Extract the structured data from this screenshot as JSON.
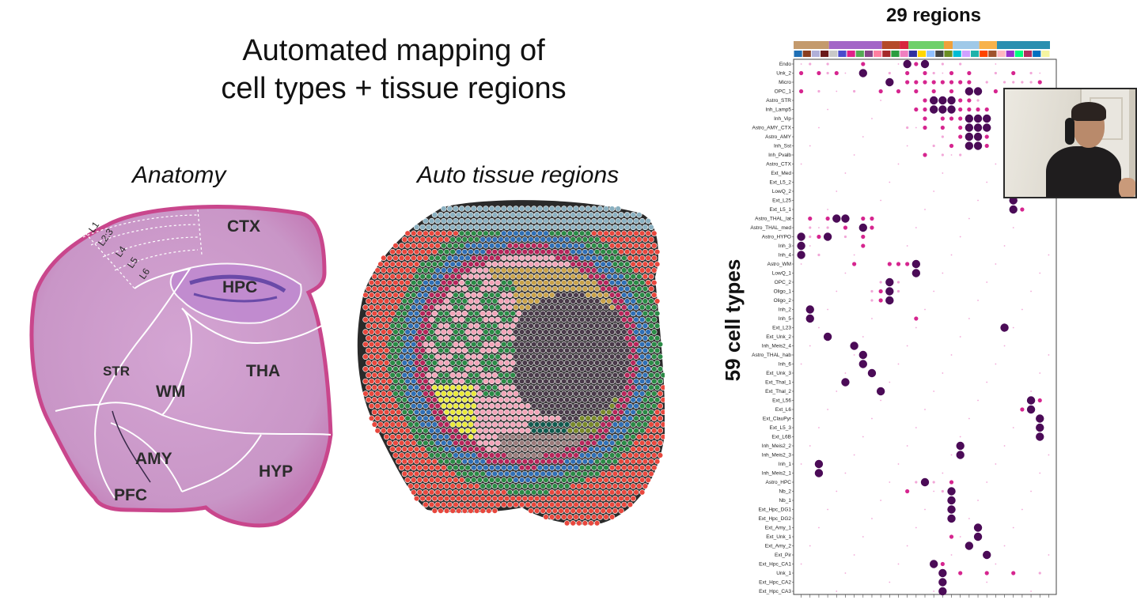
{
  "slide": {
    "title_line1": "Automated mapping of",
    "title_line2": "cell types + tissue regions",
    "anatomy_label": "Anatomy",
    "auto_label": "Auto tissue regions",
    "regions_count_label": "29 regions",
    "cell_types_count_label": "59 cell types"
  },
  "anatomy": {
    "regions": [
      "CTX",
      "HPC",
      "STR",
      "WM",
      "THA",
      "AMY",
      "HYP",
      "PFC"
    ],
    "layers": [
      "L1",
      "L2:3",
      "L4",
      "L5",
      "L6"
    ],
    "colors": {
      "tissue": "#cf9ccc",
      "edge": "#c44a8a",
      "outline": "#ffffff",
      "label": "#2b2b2b"
    }
  },
  "auto_regions": {
    "palette": [
      "#e8473d",
      "#2a8a45",
      "#2f6fb5",
      "#b8245a",
      "#f2a4b8",
      "#e9e93a",
      "#4a3a4a",
      "#7a8a2a",
      "#0f5b4e",
      "#9a7a7a",
      "#5a5cb0",
      "#8ab0c0",
      "#c9a24a",
      "#5a2d2d",
      "#6ab4d6"
    ],
    "outline": "#2a2a2a"
  },
  "dotplot": {
    "region_group_colors": [
      "#c49a6c",
      "#a366c7",
      "#b54a2a",
      "#d8273d",
      "#6fd06a",
      "#f0a03a",
      "#9fc9e8",
      "#f7b24a",
      "#2a8fb0"
    ],
    "region_colors": [
      "#1f6fb5",
      "#8a3d1f",
      "#b0b0d8",
      "#6a1a1a",
      "#c8c8c8",
      "#4a4acc",
      "#e0228a",
      "#55aa55",
      "#884488",
      "#ff7fa0",
      "#a52a2a",
      "#2a9d40",
      "#f080c0",
      "#3030a0",
      "#ffd700",
      "#90c0ff",
      "#444444",
      "#6b8e23",
      "#00bcd4",
      "#d0a0ff",
      "#20b2aa",
      "#ff4500",
      "#a0522d",
      "#ffb6c1",
      "#9932cc",
      "#00ff7f",
      "#b03060",
      "#0070c0",
      "#f5f5a0"
    ],
    "dot_dark": "#4b0b57",
    "dot_mid": "#d6258f",
    "dot_light": "#f2a7d8",
    "cell_types": [
      "Endo",
      "Unk_2",
      "Micro",
      "OPC_1",
      "Astro_STR",
      "Inh_Lamp5",
      "Inh_Vip",
      "Astro_AMY_CTX",
      "Astro_AMY",
      "Inh_Sst",
      "Inh_Pvalb",
      "Astro_CTX",
      "Ext_Med",
      "Ext_L5_2",
      "LowQ_2",
      "Ext_L25",
      "Ext_L5_1",
      "Astro_THAL_lat",
      "Astro_THAL_med",
      "Astro_HYPO",
      "Inh_3",
      "Inh_4",
      "Astro_WM",
      "LowQ_1",
      "OPC_2",
      "Oligo_1",
      "Oligo_2",
      "Inh_2",
      "Inh_5",
      "Ext_L23",
      "Ext_Unk_2",
      "Inh_Meis2_4",
      "Astro_THAL_hab",
      "Inh_6",
      "Ext_Unk_3",
      "Ext_Thal_1",
      "Ext_Thal_2",
      "Ext_L56",
      "Ext_L6",
      "Ext_ClauPyr",
      "Ext_L5_3",
      "Ext_L6B",
      "Inh_Meis2_2",
      "Inh_Meis2_3",
      "Inh_1",
      "Inh_Meis2_1",
      "Astro_HPC",
      "Nb_2",
      "Nb_1",
      "Ext_Hpc_DG1",
      "Ext_Hpc_DG2",
      "Ext_Amy_1",
      "Ext_Unk_1",
      "Ext_Amy_2",
      "Ext_Pir",
      "Ext_Hpc_CA1",
      "Unk_1",
      "Ext_Hpc_CA2",
      "Ext_Hpc_CA3"
    ],
    "dots": [
      [
        0,
        7,
        2
      ],
      [
        0,
        12,
        3
      ],
      [
        0,
        14,
        3
      ],
      [
        0,
        13,
        2
      ],
      [
        0,
        1,
        1
      ],
      [
        0,
        3,
        1
      ],
      [
        0,
        16,
        1
      ],
      [
        0,
        18,
        1
      ],
      [
        1,
        0,
        2
      ],
      [
        1,
        2,
        2
      ],
      [
        1,
        3,
        1
      ],
      [
        1,
        4,
        2
      ],
      [
        1,
        7,
        3
      ],
      [
        1,
        10,
        1
      ],
      [
        1,
        12,
        2
      ],
      [
        1,
        14,
        2
      ],
      [
        1,
        15,
        1
      ],
      [
        1,
        17,
        2
      ],
      [
        1,
        19,
        2
      ],
      [
        1,
        22,
        1
      ],
      [
        1,
        24,
        2
      ],
      [
        1,
        26,
        1
      ],
      [
        2,
        10,
        3
      ],
      [
        2,
        12,
        2
      ],
      [
        2,
        13,
        2
      ],
      [
        2,
        14,
        2
      ],
      [
        2,
        15,
        2
      ],
      [
        2,
        16,
        2
      ],
      [
        2,
        17,
        2
      ],
      [
        2,
        18,
        2
      ],
      [
        2,
        19,
        2
      ],
      [
        2,
        21,
        1
      ],
      [
        2,
        23,
        1
      ],
      [
        2,
        24,
        1
      ],
      [
        2,
        25,
        1
      ],
      [
        2,
        26,
        1
      ],
      [
        2,
        27,
        2
      ],
      [
        3,
        0,
        2
      ],
      [
        3,
        2,
        1
      ],
      [
        3,
        6,
        1
      ],
      [
        3,
        9,
        2
      ],
      [
        3,
        11,
        2
      ],
      [
        3,
        13,
        2
      ],
      [
        3,
        15,
        2
      ],
      [
        3,
        17,
        2
      ],
      [
        3,
        19,
        3
      ],
      [
        3,
        20,
        3
      ],
      [
        3,
        22,
        2
      ],
      [
        3,
        24,
        1
      ],
      [
        4,
        14,
        2
      ],
      [
        4,
        15,
        3
      ],
      [
        4,
        16,
        3
      ],
      [
        4,
        17,
        3
      ],
      [
        4,
        18,
        2
      ],
      [
        4,
        19,
        2
      ],
      [
        4,
        20,
        1
      ],
      [
        5,
        13,
        2
      ],
      [
        5,
        14,
        2
      ],
      [
        5,
        15,
        3
      ],
      [
        5,
        16,
        3
      ],
      [
        5,
        17,
        3
      ],
      [
        5,
        18,
        2
      ],
      [
        5,
        19,
        2
      ],
      [
        5,
        20,
        2
      ],
      [
        5,
        21,
        2
      ],
      [
        6,
        14,
        2
      ],
      [
        6,
        16,
        2
      ],
      [
        6,
        17,
        2
      ],
      [
        6,
        18,
        2
      ],
      [
        6,
        19,
        3
      ],
      [
        6,
        20,
        3
      ],
      [
        6,
        21,
        3
      ],
      [
        7,
        12,
        1
      ],
      [
        7,
        14,
        2
      ],
      [
        7,
        16,
        2
      ],
      [
        7,
        18,
        2
      ],
      [
        7,
        19,
        3
      ],
      [
        7,
        20,
        3
      ],
      [
        7,
        21,
        3
      ],
      [
        8,
        16,
        1
      ],
      [
        8,
        18,
        2
      ],
      [
        8,
        19,
        3
      ],
      [
        8,
        20,
        3
      ],
      [
        8,
        21,
        2
      ],
      [
        9,
        15,
        1
      ],
      [
        9,
        17,
        2
      ],
      [
        9,
        19,
        3
      ],
      [
        9,
        20,
        3
      ],
      [
        9,
        21,
        2
      ],
      [
        10,
        14,
        2
      ],
      [
        10,
        16,
        1
      ],
      [
        10,
        18,
        1
      ],
      [
        15,
        24,
        3
      ],
      [
        16,
        24,
        3
      ],
      [
        16,
        25,
        2
      ],
      [
        17,
        1,
        2
      ],
      [
        17,
        3,
        2
      ],
      [
        17,
        4,
        3
      ],
      [
        17,
        5,
        3
      ],
      [
        17,
        7,
        2
      ],
      [
        17,
        8,
        2
      ],
      [
        18,
        1,
        1
      ],
      [
        18,
        3,
        1
      ],
      [
        18,
        5,
        2
      ],
      [
        18,
        7,
        3
      ],
      [
        18,
        8,
        2
      ],
      [
        19,
        0,
        3
      ],
      [
        19,
        1,
        1
      ],
      [
        19,
        2,
        2
      ],
      [
        19,
        3,
        3
      ],
      [
        19,
        5,
        1
      ],
      [
        19,
        7,
        2
      ],
      [
        20,
        0,
        3
      ],
      [
        20,
        7,
        2
      ],
      [
        21,
        0,
        3
      ],
      [
        21,
        2,
        1
      ],
      [
        22,
        6,
        2
      ],
      [
        22,
        10,
        2
      ],
      [
        22,
        11,
        2
      ],
      [
        22,
        12,
        2
      ],
      [
        22,
        13,
        3
      ],
      [
        23,
        13,
        3
      ],
      [
        24,
        10,
        3
      ],
      [
        24,
        9,
        1
      ],
      [
        24,
        11,
        1
      ],
      [
        25,
        10,
        3
      ],
      [
        25,
        8,
        1
      ],
      [
        25,
        9,
        2
      ],
      [
        25,
        11,
        1
      ],
      [
        26,
        10,
        3
      ],
      [
        26,
        8,
        1
      ],
      [
        26,
        9,
        2
      ],
      [
        27,
        1,
        3
      ],
      [
        28,
        1,
        3
      ],
      [
        28,
        13,
        2
      ],
      [
        29,
        23,
        3
      ],
      [
        30,
        3,
        3
      ],
      [
        31,
        6,
        3
      ],
      [
        32,
        7,
        3
      ],
      [
        33,
        7,
        3
      ],
      [
        34,
        8,
        3
      ],
      [
        35,
        5,
        3
      ],
      [
        36,
        9,
        3
      ],
      [
        37,
        26,
        3
      ],
      [
        37,
        27,
        2
      ],
      [
        38,
        26,
        3
      ],
      [
        38,
        25,
        2
      ],
      [
        39,
        27,
        3
      ],
      [
        40,
        27,
        3
      ],
      [
        41,
        27,
        3
      ],
      [
        42,
        18,
        3
      ],
      [
        43,
        18,
        3
      ],
      [
        44,
        2,
        3
      ],
      [
        45,
        2,
        3
      ],
      [
        46,
        14,
        3
      ],
      [
        46,
        13,
        1
      ],
      [
        46,
        15,
        1
      ],
      [
        46,
        17,
        2
      ],
      [
        47,
        17,
        3
      ],
      [
        47,
        12,
        2
      ],
      [
        47,
        16,
        1
      ],
      [
        48,
        17,
        3
      ],
      [
        49,
        17,
        3
      ],
      [
        50,
        17,
        3
      ],
      [
        51,
        20,
        3
      ],
      [
        52,
        20,
        3
      ],
      [
        52,
        17,
        2
      ],
      [
        53,
        19,
        3
      ],
      [
        54,
        21,
        3
      ],
      [
        55,
        15,
        3
      ],
      [
        55,
        16,
        2
      ],
      [
        56,
        16,
        3
      ],
      [
        56,
        18,
        2
      ],
      [
        56,
        21,
        2
      ],
      [
        56,
        24,
        2
      ],
      [
        56,
        27,
        1
      ],
      [
        57,
        16,
        3
      ],
      [
        58,
        16,
        3
      ]
    ]
  }
}
